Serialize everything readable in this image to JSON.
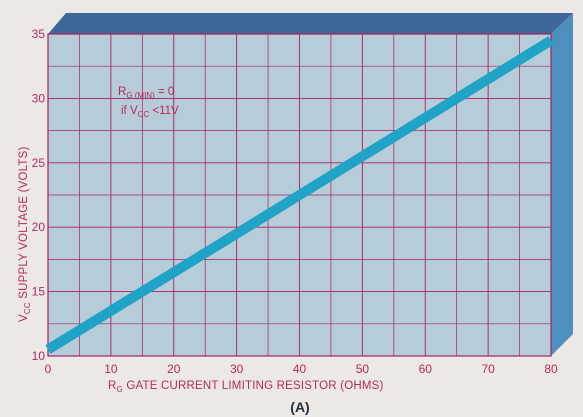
{
  "chart_data": {
    "type": "line",
    "x": [
      0,
      80
    ],
    "values": [
      10.5,
      34.5
    ],
    "xlim": [
      0,
      80
    ],
    "ylim": [
      10,
      35
    ],
    "x_ticks": [
      "0",
      "10",
      "20",
      "30",
      "40",
      "50",
      "60",
      "70",
      "80"
    ],
    "y_ticks": [
      "10",
      "15",
      "20",
      "25",
      "30",
      "35"
    ],
    "xlabel": {
      "main": "R",
      "sub": "G",
      "rest": " GATE CURRENT LIMITING RESISTOR (OHMS)"
    },
    "ylabel": {
      "main": "V",
      "sub": "CC",
      "rest": " SUPPLY VOLTAGE (VOLTS)"
    },
    "annotation": {
      "line1_main": "R",
      "line1_sub": "G (MIN)",
      "line1_rest": " = 0",
      "line2_main": "if V",
      "line2_sub": "CC",
      "line2_rest": " <11V"
    },
    "caption": "(A)",
    "grid": true,
    "colors": {
      "plot_bg": "#b6ccd9",
      "grid": "#a8215e",
      "line": "#1fa3c6",
      "box_top": "#3d6799",
      "box_side": "#4d8fbd",
      "text": "#b72a5c"
    }
  }
}
